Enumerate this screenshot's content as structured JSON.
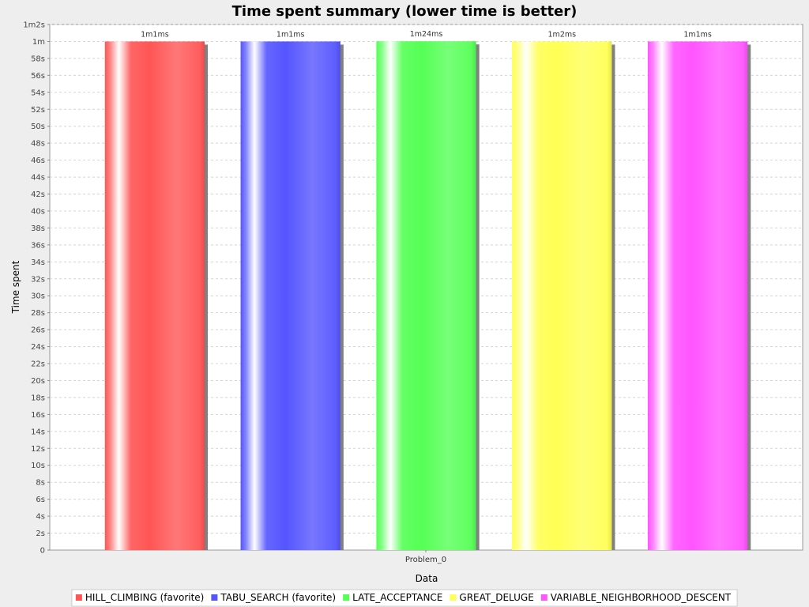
{
  "chart_data": {
    "type": "bar",
    "title": "Time spent summary (lower time is better)",
    "xlabel": "Data",
    "ylabel": "Time spent",
    "categories": [
      "Problem_0"
    ],
    "y_unit": "ms",
    "ylim": [
      0,
      62000
    ],
    "y_ticks": [
      {
        "value": 0,
        "label": "0"
      },
      {
        "value": 2000,
        "label": "2s"
      },
      {
        "value": 4000,
        "label": "4s"
      },
      {
        "value": 6000,
        "label": "6s"
      },
      {
        "value": 8000,
        "label": "8s"
      },
      {
        "value": 10000,
        "label": "10s"
      },
      {
        "value": 12000,
        "label": "12s"
      },
      {
        "value": 14000,
        "label": "14s"
      },
      {
        "value": 16000,
        "label": "16s"
      },
      {
        "value": 18000,
        "label": "18s"
      },
      {
        "value": 20000,
        "label": "20s"
      },
      {
        "value": 22000,
        "label": "22s"
      },
      {
        "value": 24000,
        "label": "24s"
      },
      {
        "value": 26000,
        "label": "26s"
      },
      {
        "value": 28000,
        "label": "28s"
      },
      {
        "value": 30000,
        "label": "30s"
      },
      {
        "value": 32000,
        "label": "32s"
      },
      {
        "value": 34000,
        "label": "34s"
      },
      {
        "value": 36000,
        "label": "36s"
      },
      {
        "value": 38000,
        "label": "38s"
      },
      {
        "value": 40000,
        "label": "40s"
      },
      {
        "value": 42000,
        "label": "42s"
      },
      {
        "value": 44000,
        "label": "44s"
      },
      {
        "value": 46000,
        "label": "46s"
      },
      {
        "value": 48000,
        "label": "48s"
      },
      {
        "value": 50000,
        "label": "50s"
      },
      {
        "value": 52000,
        "label": "52s"
      },
      {
        "value": 54000,
        "label": "54s"
      },
      {
        "value": 56000,
        "label": "56s"
      },
      {
        "value": 58000,
        "label": "58s"
      },
      {
        "value": 60000,
        "label": "1m"
      },
      {
        "value": 62000,
        "label": "1m2s"
      }
    ],
    "grid": true,
    "legend_position": "bottom",
    "series": [
      {
        "name": "HILL_CLIMBING (favorite)",
        "values": [
          60001
        ],
        "data_label": "1m1ms",
        "color": "#ff5555"
      },
      {
        "name": "TABU_SEARCH (favorite)",
        "values": [
          60001
        ],
        "data_label": "1m1ms",
        "color": "#5555ff"
      },
      {
        "name": "LATE_ACCEPTANCE",
        "values": [
          60024
        ],
        "data_label": "1m24ms",
        "color": "#55ff55"
      },
      {
        "name": "GREAT_DELUGE",
        "values": [
          60002
        ],
        "data_label": "1m2ms",
        "color": "#ffff55"
      },
      {
        "name": "VARIABLE_NEIGHBORHOOD_DESCENT",
        "values": [
          60001
        ],
        "data_label": "1m1ms",
        "color": "#ff55ff"
      }
    ]
  }
}
